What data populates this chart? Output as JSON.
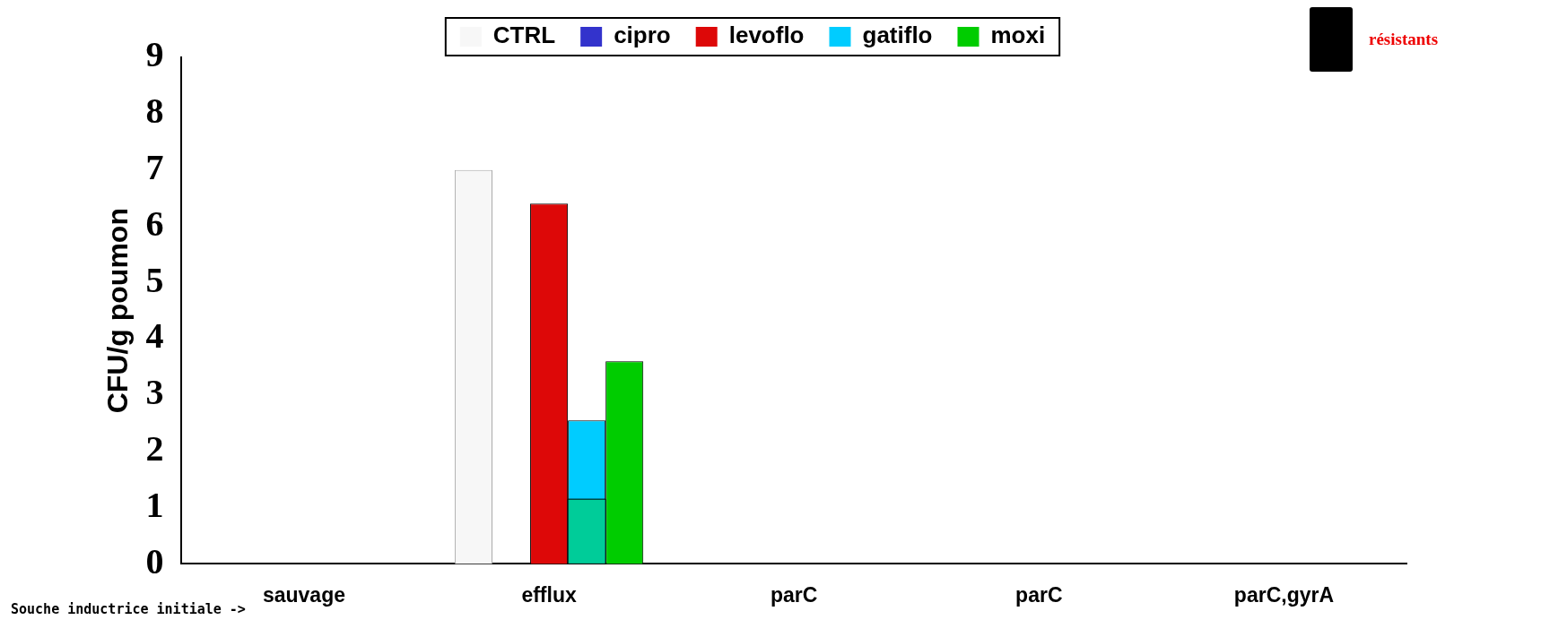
{
  "chart_data": {
    "type": "bar",
    "ylabel": "CFU/g poumon",
    "xlabel": "Souche inductrice initiale ->",
    "categories": [
      "sauvage",
      "efflux",
      "parC",
      "parC",
      "parC,gyrA"
    ],
    "series": [
      {
        "name": "CTRL",
        "color": "#f7f7f7",
        "values": [
          null,
          7,
          null,
          null,
          null
        ]
      },
      {
        "name": "cipro",
        "color": "#3333cc",
        "values": [
          null,
          null,
          null,
          null,
          null
        ]
      },
      {
        "name": "levoflo",
        "color": "#dd0808",
        "values": [
          null,
          6.4,
          null,
          null,
          null
        ]
      },
      {
        "name": "gatiflo",
        "color": "#00ccff",
        "values": [
          null,
          2.55,
          null,
          null,
          null
        ]
      },
      {
        "name": "moxi",
        "color": "#00cc00",
        "values": [
          null,
          3.6,
          null,
          null,
          null
        ]
      },
      {
        "color": "#00cc99",
        "values": [
          null,
          1.15,
          null,
          null,
          null
        ]
      }
    ],
    "ylim": [
      0,
      9
    ],
    "yticks": [
      0,
      1,
      2,
      3,
      4,
      5,
      6,
      7,
      8,
      9
    ],
    "grid": false,
    "legend": "top",
    "annotations": [
      "résistants"
    ]
  }
}
